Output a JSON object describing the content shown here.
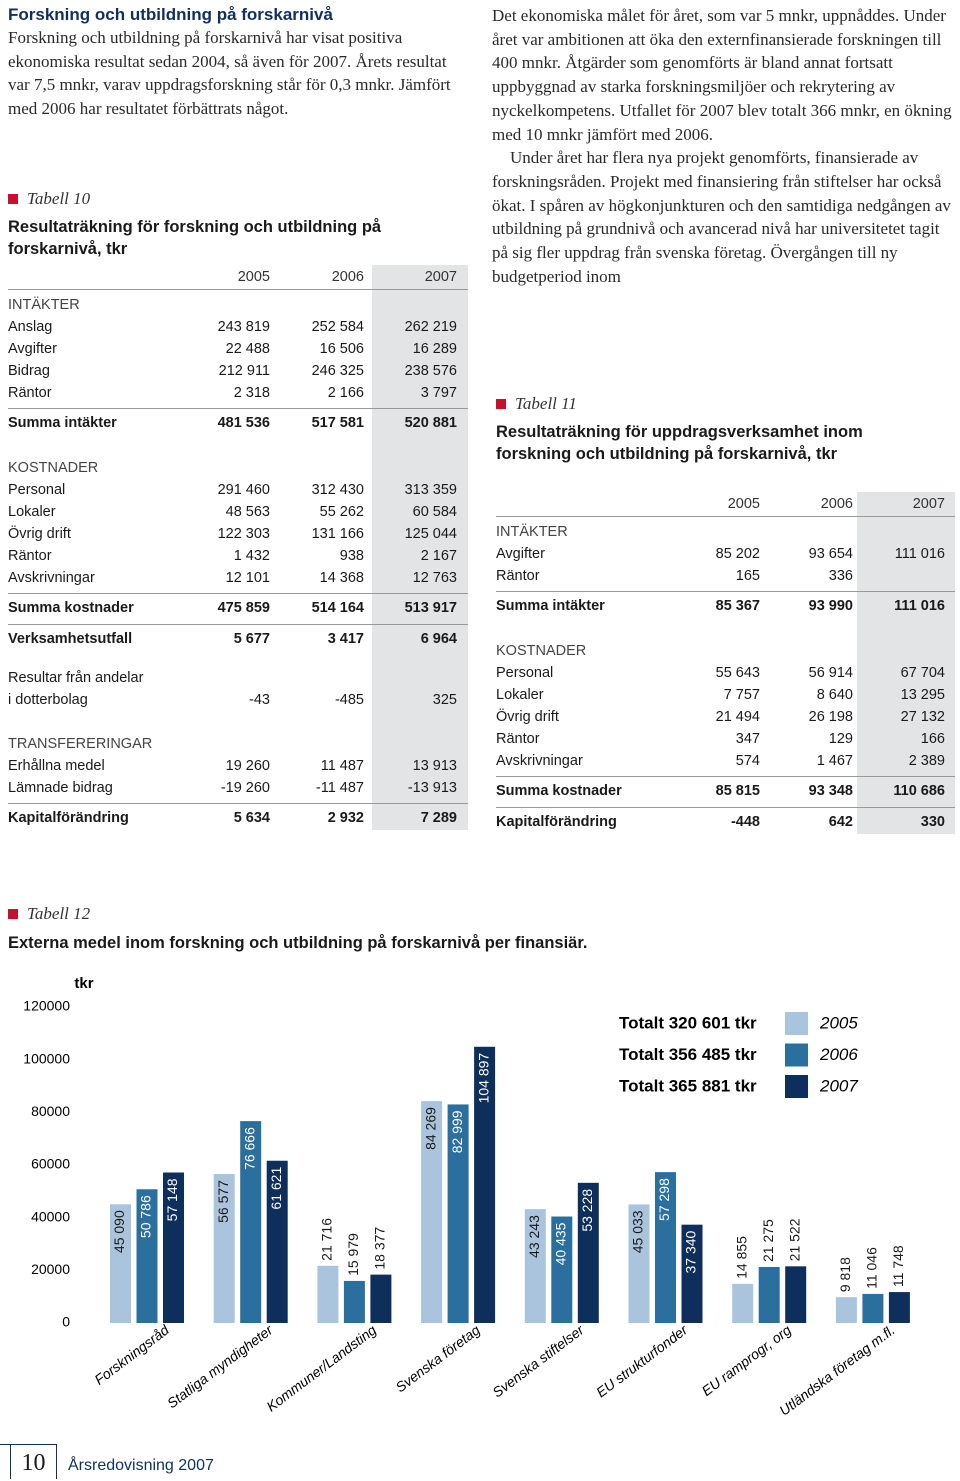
{
  "left_text": {
    "title": "Forskning och utbildning på forskarnivå",
    "body": "Forskning och utbildning på forskarnivå har visat positiva ekonomiska resultat sedan 2004, så även för 2007. Årets resultat var 7,5 mnkr, varav uppdragsforskning står för 0,3 mnkr. Jämfört med 2006 har resultatet förbättrats något."
  },
  "right_text": {
    "paragraphs": [
      "Det ekonomiska målet för året, som var 5 mnkr, uppnåddes. Under året var ambitionen att öka den externfinansierade forskningen till 400 mnkr. Åtgärder som genomförts är bland annat fortsatt uppbyggnad av starka forskningsmiljöer och rekrytering av nyckelkompetens. Utfallet för 2007 blev totalt 366 mnkr, en ökning med 10 mnkr jämfört med 2006.",
      "Under året har flera nya projekt genomförts, finansierade av forskningsråden. Projekt med finansiering från stiftelser har också ökat. I spåren av högkonjunkturen och den samtidiga nedgången av utbildning på grundnivå och avancerad nivå har universitetet tagit på sig fler uppdrag från svenska företag. Övergången till ny budgetperiod inom"
    ]
  },
  "table10": {
    "label": "Tabell 10",
    "title": "Resultaträkning för forskning och utbildning på forskarnivå, tkr",
    "columns": [
      "2005",
      "2006",
      "2007"
    ],
    "rows": [
      {
        "heading": "INTÄKTER"
      },
      {
        "label": "Anslag",
        "values": [
          "243 819",
          "252 584",
          "262 219"
        ]
      },
      {
        "label": "Avgifter",
        "values": [
          "22 488",
          "16 506",
          "16 289"
        ]
      },
      {
        "label": "Bidrag",
        "values": [
          "212 911",
          "246 325",
          "238 576"
        ]
      },
      {
        "label": "Räntor",
        "values": [
          "2 318",
          "2 166",
          "3 797"
        ]
      },
      {
        "total": "Summa intäkter",
        "values": [
          "481 536",
          "517 581",
          "520 881"
        ]
      },
      {
        "heading": "KOSTNADER"
      },
      {
        "label": "Personal",
        "values": [
          "291 460",
          "312 430",
          "313 359"
        ]
      },
      {
        "label": "Lokaler",
        "values": [
          "48 563",
          "55 262",
          "60 584"
        ]
      },
      {
        "label": "Övrig drift",
        "values": [
          "122 303",
          "131 166",
          "125 044"
        ]
      },
      {
        "label": "Räntor",
        "values": [
          "1 432",
          "938",
          "2 167"
        ]
      },
      {
        "label": "Avskrivningar",
        "values": [
          "12 101",
          "14 368",
          "12 763"
        ]
      },
      {
        "total": "Summa kostnader",
        "values": [
          "475 859",
          "514 164",
          "513 917"
        ]
      },
      {
        "total": "Verksamhetsutfall",
        "values": [
          "5 677",
          "3 417",
          "6 964"
        ]
      },
      {
        "label": "Resultar från andelar"
      },
      {
        "label": "i dotterbolag",
        "values": [
          "-43",
          "-485",
          "325"
        ]
      },
      {
        "heading": "TRANSFERERINGAR"
      },
      {
        "label": "Erhållna medel",
        "values": [
          "19 260",
          "11 487",
          "13 913"
        ]
      },
      {
        "label": "Lämnade bidrag",
        "values": [
          "-19 260",
          "-11 487",
          "-13 913"
        ]
      },
      {
        "total": "Kapitalförändring",
        "values": [
          "5 634",
          "2 932",
          "7 289"
        ]
      }
    ]
  },
  "table11": {
    "label": "Tabell 11",
    "title": "Resultaträkning för uppdragsverksamhet inom forskning och utbildning på forskarnivå, tkr",
    "columns": [
      "2005",
      "2006",
      "2007"
    ],
    "rows": [
      {
        "heading": "INTÄKTER"
      },
      {
        "label": "Avgifter",
        "values": [
          "85 202",
          "93 654",
          "111 016"
        ]
      },
      {
        "label": "Räntor",
        "values": [
          "165",
          "336",
          null
        ]
      },
      {
        "total": "Summa intäkter",
        "values": [
          "85 367",
          "93 990",
          "111 016"
        ]
      },
      {
        "heading": "KOSTNADER"
      },
      {
        "label": "Personal",
        "values": [
          "55 643",
          "56 914",
          "67 704"
        ]
      },
      {
        "label": "Lokaler",
        "values": [
          "7 757",
          "8 640",
          "13 295"
        ]
      },
      {
        "label": "Övrig drift",
        "values": [
          "21 494",
          "26 198",
          "27 132"
        ]
      },
      {
        "label": "Räntor",
        "values": [
          "347",
          "129",
          "166"
        ]
      },
      {
        "label": "Avskrivningar",
        "values": [
          "574",
          "1 467",
          "2 389"
        ]
      },
      {
        "total": "Summa kostnader",
        "values": [
          "85 815",
          "93 348",
          "110 686"
        ]
      },
      {
        "total": "Kapitalförändring",
        "values": [
          "-448",
          "642",
          "330"
        ]
      }
    ]
  },
  "chart_data": {
    "type": "bar",
    "label": "Tabell 12",
    "title": "Externa medel inom forskning och utbildning på forskarnivå per finansiär.",
    "y_unit": "tkr",
    "categories": [
      "Forskningsråd",
      "Statliga myndigheter",
      "Kommuner/Landsting",
      "Svenska företag",
      "Svenska stiftelser",
      "EU strukturfonder",
      "EU ramprogr, org",
      "Utländska företag m.fl."
    ],
    "series": [
      {
        "name": "2005",
        "color": "#a9c4dc",
        "total_label": "Totalt 320 601 tkr",
        "values": [
          45090,
          56577,
          21716,
          84269,
          43243,
          45033,
          14855,
          9818
        ],
        "value_labels": [
          "45 090",
          "56 577",
          "21 716",
          "84 269",
          "43 243",
          "45 033",
          "14 855",
          "9 818"
        ]
      },
      {
        "name": "2006",
        "color": "#2b6f9f",
        "total_label": "Totalt 356 485 tkr",
        "values": [
          50786,
          76666,
          15979,
          82999,
          40435,
          57298,
          21275,
          11046
        ],
        "value_labels": [
          "50 786",
          "76 666",
          "15 979",
          "82 999",
          "40 435",
          "57 298",
          "21 275",
          "11 046"
        ]
      },
      {
        "name": "2007",
        "color": "#0e2f5c",
        "total_label": "Totalt 365 881 tkr",
        "values": [
          57148,
          61621,
          18377,
          104897,
          53228,
          37340,
          21522,
          11748
        ],
        "value_labels": [
          "57 148",
          "61 621",
          "18 377",
          "104 897",
          "53 228",
          "37 340",
          "21 522",
          "11 748"
        ]
      }
    ],
    "ylim": [
      0,
      120000
    ],
    "yticks": [
      0,
      20000,
      40000,
      60000,
      80000,
      100000,
      120000
    ]
  },
  "footer": {
    "page": "10",
    "publication": "Årsredovisning",
    "year": "2007"
  }
}
